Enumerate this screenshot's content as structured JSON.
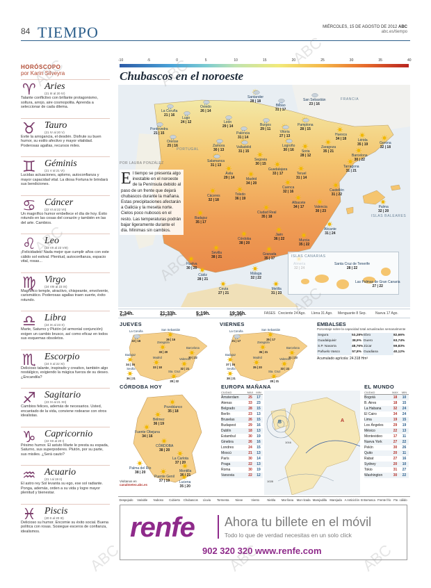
{
  "header": {
    "page_number": "84",
    "section": "TIEMPO",
    "date": "MIÉRCOLES, 15 DE AGOSTO DE 2012",
    "brand": "ABC",
    "site": "abc.es/tiempo"
  },
  "horoscope": {
    "title": "HORÓSCOPO",
    "author": "por Karin Silveyra",
    "signs": [
      {
        "glyph": "♈",
        "name": "Aries",
        "dates": "(21 III al 20 IV)",
        "text": "Talante conflictivo con brillante protagonismo, soltura, arrojo, aire cosmopolita. Aprenda a seleccionar de cada dilema."
      },
      {
        "glyph": "♉",
        "name": "Tauro",
        "dates": "(21 IV al 20 V)",
        "text": "Evite la arrogancia, el desdén. Disfrute su buen humor, su estilo afectivo y mayor vitalidad. Poderosas agallas, recursos miles."
      },
      {
        "glyph": "♊",
        "name": "Géminis",
        "dates": "(21 V al 21 VI)",
        "text": "Lucidas actuaciones, aplomo, autoconfianza y mayor capacidad vital. La diosa Fortuna le brindará sus bendiciones."
      },
      {
        "glyph": "♋",
        "name": "Cáncer",
        "dates": "(22 VI al 22 VII)",
        "text": "Un magnífico humor embellece el día de hoy. Éxito rotundo en las cosas del corazón y también en las del arte. Cambios."
      },
      {
        "glyph": "♌",
        "name": "Leo",
        "dates": "(23 VII al 23 VIII)",
        "text": "¡Felicidades! Nada mejor que cumplir años con este cálido sol estival. Plenitud, autoconfianza, espacio vital, rosas..."
      },
      {
        "glyph": "♍",
        "name": "Virgo",
        "dates": "(24 VIII al 23 IX)",
        "text": "Magnífico temple, atractivo, chispeante, envolvente, carismático. Poderosas agallas traen suerte, éxito rotundo."
      },
      {
        "glyph": "♎",
        "name": "Libra",
        "dates": "(24 IX al 23 X)",
        "text": "Marte, Saturno y Plutón (el armonial conjunción) exigen un cambio brusco, así como eficaz en todos sus esquemas obsoletos."
      },
      {
        "glyph": "♏",
        "name": "Escorpio",
        "dates": "(24 X al 22 XI)",
        "text": "Delicioso talante, inspirado y creativo, también algo nostálgico, exigiendo la mágica fuerza de su deseo. ¿Encandila?"
      },
      {
        "glyph": "♐",
        "name": "Sagitario",
        "dates": "(23 XI al 21 XII)",
        "text": "Cambios felices, además de necesarios. Usted, encantado de la vida, conviene rodearse con otros idealistas."
      },
      {
        "glyph": "♑",
        "name": "Capricornio",
        "dates": "(22 XII al 20 I)",
        "text": "Pésimo humor. El astuto Marte le presta su espada, Saturno, sus superpoderes. Plutón, por su parte, sus misiles. ¿Será cauto?"
      },
      {
        "glyph": "♒",
        "name": "Acuario",
        "dates": "(21 I al 19 II)",
        "text": "El astro rey Sol levanta su ego, ese sol radiante. Ponga, además, orden a su vida y logre mayor plenitud y bienestar."
      },
      {
        "glyph": "♓",
        "name": "Piscis",
        "dates": "(20 II al 20 III)",
        "text": "Delicioso su humor. Encomie su éxito social. Buena política con rosas. Sosiegue esceros de confianza, idealismos."
      }
    ]
  },
  "scale": {
    "labels": [
      "-10",
      "-5",
      "0",
      "5",
      "10",
      "15",
      "20",
      "25",
      "30",
      "35",
      "40"
    ]
  },
  "map": {
    "title": "Chubascos en el noroeste",
    "byline": "POR LAURA PONZÁLEZ",
    "lead_initial": "E",
    "lead_text": "l tiempo se presenta algo inestable en el noroeste de la Península debido al paso de un frente que dejará chubascos durante la mañana. Estas precipitaciones afectarán a Galicia y la meseta norte. Cielos poco nubosos en el resto. Las temperaturas podrán bajar ligeramente durante el día. Mínimas sin cambios.",
    "labels": {
      "portugal": "PORTUGAL",
      "francia": "FRANCIA",
      "baleares": "ISLAS BALEARES",
      "canarias": "ISLAS CANARIAS"
    },
    "cities": [
      {
        "name": "La Coruña",
        "temps": "21 | 16"
      },
      {
        "name": "Oviedo",
        "temps": "26 | 14"
      },
      {
        "name": "Santander",
        "temps": "28 | 18"
      },
      {
        "name": "Bilbao",
        "temps": "31 | 17"
      },
      {
        "name": "San Sebastián",
        "temps": "23 | 16"
      },
      {
        "name": "Pontevedra",
        "temps": "21 | 15"
      },
      {
        "name": "Lugo",
        "temps": "24 | 12"
      },
      {
        "name": "León",
        "temps": "29 | 14"
      },
      {
        "name": "Palencia",
        "temps": "31 | 14"
      },
      {
        "name": "Burgos",
        "temps": "29 | 11"
      },
      {
        "name": "Vitoria",
        "temps": "27 | 13"
      },
      {
        "name": "Pamplona",
        "temps": "28 | 15"
      },
      {
        "name": "Huesca",
        "temps": "34 | 18"
      },
      {
        "name": "Lérida",
        "temps": "35 | 19"
      },
      {
        "name": "Gerona",
        "temps": "32 | 18"
      },
      {
        "name": "Orense",
        "temps": "25 | 16"
      },
      {
        "name": "Zamora",
        "temps": "30 | 13"
      },
      {
        "name": "Valladolid",
        "temps": "31 | 15"
      },
      {
        "name": "Logroño",
        "temps": "30 | 16"
      },
      {
        "name": "Soria",
        "temps": "28 | 12"
      },
      {
        "name": "Zaragoza",
        "temps": "35 | 21"
      },
      {
        "name": "Barcelona",
        "temps": "30 | 22"
      },
      {
        "name": "Tarragona",
        "temps": "31 | 21"
      },
      {
        "name": "Salamanca",
        "temps": "31 | 13"
      },
      {
        "name": "Segovia",
        "temps": "30 | 15"
      },
      {
        "name": "Ávila",
        "temps": "29 | 14"
      },
      {
        "name": "Guadalajara",
        "temps": "33 | 17"
      },
      {
        "name": "Teruel",
        "temps": "31 | 14"
      },
      {
        "name": "Castellón",
        "temps": "31 | 22"
      },
      {
        "name": "Cáceres",
        "temps": "32 | 18"
      },
      {
        "name": "Madrid",
        "temps": "34 | 20"
      },
      {
        "name": "Cuenca",
        "temps": "32 | 16"
      },
      {
        "name": "Valencia",
        "temps": "30 | 23"
      },
      {
        "name": "Palma",
        "temps": "32 | 20"
      },
      {
        "name": "Toledo",
        "temps": "36 | 19"
      },
      {
        "name": "Badajoz",
        "temps": "35 | 17"
      },
      {
        "name": "Ciudad Real",
        "temps": "35 | 18"
      },
      {
        "name": "Albacete",
        "temps": "34 | 17"
      },
      {
        "name": "Alicante",
        "temps": "31 | 24"
      },
      {
        "name": "Córdoba",
        "temps": "38 | 20"
      },
      {
        "name": "Jaén",
        "temps": "36 | 22"
      },
      {
        "name": "Murcia",
        "temps": "35 | 22"
      },
      {
        "name": "Sevilla",
        "temps": "38 | 21"
      },
      {
        "name": "Granada",
        "temps": "35 | 17"
      },
      {
        "name": "Almería",
        "temps": "32 | 24"
      },
      {
        "name": "Huelva",
        "temps": "30 | 20"
      },
      {
        "name": "Málaga",
        "temps": "32 | 22"
      },
      {
        "name": "Cádiz",
        "temps": "28 | 21"
      },
      {
        "name": "Ceuta",
        "temps": "27 | 21"
      },
      {
        "name": "Melilla",
        "temps": "31 | 23"
      },
      {
        "name": "Santa Cruz de Tenerife",
        "temps": "28 | 22"
      },
      {
        "name": "Las Palmas de Gran Canaria",
        "temps": "27 | 22"
      }
    ]
  },
  "sun": {
    "sale_label": "Sale",
    "sunrise": "7:34h.",
    "pone_label": "Se pone",
    "sunset": "21:33h.",
    "moon_sale_label": "Sale",
    "moonrise": "5:19h.",
    "moon_pone_label": "Se pone",
    "moonset": "19:36h.",
    "fases_label": "FASES",
    "phases": [
      "Creciente 24 Ago.",
      "Llena 31 Ago.",
      "Menguante 8 Sep.",
      "Nueva 17 Ago."
    ]
  },
  "jueves": {
    "title": "JUEVES",
    "cities": [
      {
        "name": "La Coruña",
        "temps": "22 | 16"
      },
      {
        "name": "San Sebastián",
        "temps": "26 | 16"
      },
      {
        "name": "Zaragoza",
        "temps": "33 | 20"
      },
      {
        "name": "Barcelona",
        "temps": "30 | 22"
      },
      {
        "name": "Badajoz",
        "temps": "34 | 16"
      },
      {
        "name": "Madrid",
        "temps": "33 | 18"
      },
      {
        "name": "Valencia",
        "temps": "32 | 21"
      },
      {
        "name": "Sevilla",
        "temps": "36 | 21"
      },
      {
        "name": "Sta. Cruz",
        "temps": "28 | 22"
      }
    ]
  },
  "viernes": {
    "title": "VIERNES",
    "cities": [
      {
        "name": "La Coruña",
        "temps": "21 | 17"
      },
      {
        "name": "San Sebastián",
        "temps": "25 | 17"
      },
      {
        "name": "Zaragoza",
        "temps": "36 | 21"
      },
      {
        "name": "Barcelona",
        "temps": "31 | 23"
      },
      {
        "name": "Badajoz",
        "temps": "37 | 16"
      },
      {
        "name": "Madrid",
        "temps": "35 | 20"
      },
      {
        "name": "Valencia",
        "temps": "33 | 22"
      },
      {
        "name": "Sevilla",
        "temps": "38 | 21"
      },
      {
        "name": "Sta. Cruz",
        "temps": "28 | 21"
      }
    ]
  },
  "embalses": {
    "title": "EMBALSES",
    "subtitle": "Porcentaje sobre la capacidad total actualizados semanalmente",
    "rows": [
      {
        "a": "Segura",
        "av": "53,28%",
        "b": "Ebro",
        "bv": "82,66%"
      },
      {
        "a": "Guadalquivir",
        "av": "38,9%",
        "b": "Duero",
        "bv": "63,74%"
      },
      {
        "a": "S.P. Navarra",
        "av": "48,76%",
        "b": "Júcar",
        "bv": "69,83%"
      },
      {
        "a": "Pañuelo Vasco",
        "av": "57,8%",
        "b": "Guadiana",
        "bv": "40,12%"
      }
    ],
    "acumulado": "Acumulado agrícola: 24.318 Hm³"
  },
  "cordoba": {
    "title": "CÓRDOBA HOY",
    "cities": [
      {
        "name": "Pozoblanco",
        "temps": "35 | 18"
      },
      {
        "name": "Bélmez",
        "temps": "36 | 19"
      },
      {
        "name": "Fuente Obejuna",
        "temps": "34 | 16"
      },
      {
        "name": "CÓRDOBA",
        "temps": "38 | 20"
      },
      {
        "name": "La Carlota",
        "temps": "37 | 20"
      },
      {
        "name": "Palma del Río",
        "temps": "38 | 20"
      },
      {
        "name": "Montilla",
        "temps": "36 | 21"
      },
      {
        "name": "Puente Genil",
        "temps": "37 | 19"
      },
      {
        "name": "Lucena",
        "temps": "35 | 20"
      }
    ],
    "footer_label": "Visítanos en",
    "footer_site": "canalmeteo.abc.es"
  },
  "europa": {
    "title": "EUROPA MAÑANA",
    "col_city": "CIUDAD",
    "col_max": "MAX",
    "col_min": "MIN",
    "rows": [
      {
        "city": "Ámsterdam",
        "max": "25",
        "min": "17"
      },
      {
        "city": "Atenas",
        "max": "33",
        "min": "23"
      },
      {
        "city": "Belgrado",
        "max": "28",
        "min": "15"
      },
      {
        "city": "Berlín",
        "max": "23",
        "min": "13"
      },
      {
        "city": "Bruselas",
        "max": "26",
        "min": "15"
      },
      {
        "city": "Budapest",
        "max": "29",
        "min": "16"
      },
      {
        "city": "Dublín",
        "max": "18",
        "min": "13"
      },
      {
        "city": "Estambul",
        "max": "30",
        "min": "19"
      },
      {
        "city": "Ginebra",
        "max": "26",
        "min": "16"
      },
      {
        "city": "Londres",
        "max": "24",
        "min": "15"
      },
      {
        "city": "Moscú",
        "max": "21",
        "min": "13"
      },
      {
        "city": "París",
        "max": "30",
        "min": "14"
      },
      {
        "city": "Praga",
        "max": "22",
        "min": "13"
      },
      {
        "city": "Roma",
        "max": "30",
        "min": "19"
      },
      {
        "city": "Varsovia",
        "max": "22",
        "min": "12"
      }
    ],
    "pressure_labels": [
      "B",
      "A",
      "1016",
      "1028"
    ]
  },
  "mundo": {
    "title": "EL MUNDO",
    "col_city": "CIUDAD",
    "col_max": "MAX",
    "col_min": "MIN",
    "rows": [
      {
        "city": "Bogotá",
        "max": "18",
        "min": "10"
      },
      {
        "city": "B. Aires",
        "max": "18",
        "min": "15"
      },
      {
        "city": "La Habana",
        "max": "32",
        "min": "24"
      },
      {
        "city": "El Cairo",
        "max": "34",
        "min": "24"
      },
      {
        "city": "Lima",
        "max": "19",
        "min": "15"
      },
      {
        "city": "Los Ángeles",
        "max": "29",
        "min": "19"
      },
      {
        "city": "México",
        "max": "22",
        "min": "13"
      },
      {
        "city": "Montevideo",
        "max": "17",
        "min": "11"
      },
      {
        "city": "Nueva York",
        "max": "27",
        "min": "22"
      },
      {
        "city": "Pekín",
        "max": "30",
        "min": "26"
      },
      {
        "city": "Quito",
        "max": "20",
        "min": "11"
      },
      {
        "city": "Rabat",
        "max": "27",
        "min": "16"
      },
      {
        "city": "Sydney",
        "max": "20",
        "min": "10"
      },
      {
        "city": "Tokio",
        "max": "31",
        "min": "27"
      },
      {
        "city": "Washington",
        "max": "30",
        "min": "22"
      }
    ]
  },
  "legend": {
    "items": [
      "Despejado",
      "Variable",
      "Nuboso",
      "Cubierto",
      "Chubascos",
      "Lluvia",
      "Tormenta",
      "Nieve",
      "Viento",
      "Niebla",
      "Mar llana",
      "Mar rizada",
      "Marejadilla",
      "Marejada",
      "A Anticiclón",
      "B Borrasca",
      "Frente frío",
      "Fte. cálido"
    ]
  },
  "ad": {
    "logo": "renfe",
    "headline": "Ahora tu billete en el móvil",
    "subline": "Todo lo que de verdad necesitas en un solo click",
    "contact": "902 320 320 www.renfe.com"
  },
  "watermark_text": "ABC"
}
